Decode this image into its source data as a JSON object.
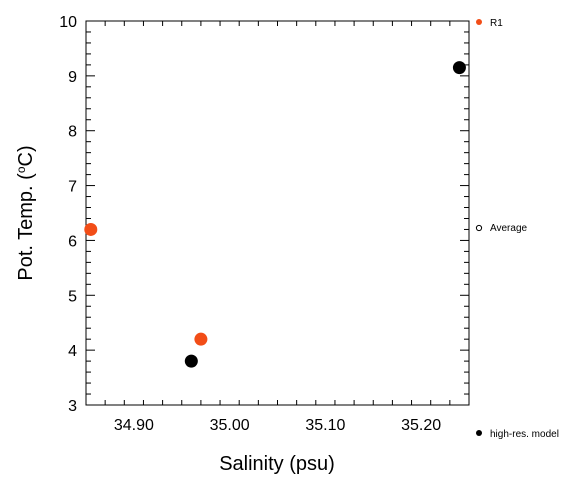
{
  "chart_data": {
    "type": "scatter",
    "xlabel": "Salinity (psu)",
    "ylabel_main": "Pot. Temp. (",
    "ylabel_sup": "o",
    "ylabel_end": "C)",
    "xlim": [
      34.85,
      35.25
    ],
    "ylim": [
      3,
      10
    ],
    "x_ticks": [
      {
        "value": 34.9,
        "label": "34.90"
      },
      {
        "value": 35.0,
        "label": "35.00"
      },
      {
        "value": 35.1,
        "label": "35.10"
      },
      {
        "value": 35.2,
        "label": "35.20"
      }
    ],
    "y_ticks": [
      {
        "value": 3,
        "label": "3"
      },
      {
        "value": 4,
        "label": "4"
      },
      {
        "value": 5,
        "label": "5"
      },
      {
        "value": 6,
        "label": "6"
      },
      {
        "value": 7,
        "label": "7"
      },
      {
        "value": 8,
        "label": "8"
      },
      {
        "value": 9,
        "label": "9"
      },
      {
        "value": 10,
        "label": "10"
      }
    ],
    "series": [
      {
        "name": "R1",
        "color": "#f24d17",
        "points": [
          {
            "x": 34.855,
            "y": 6.2
          },
          {
            "x": 34.97,
            "y": 4.2
          }
        ]
      },
      {
        "name": "high-res. model",
        "color": "#000000",
        "points": [
          {
            "x": 34.96,
            "y": 3.8
          },
          {
            "x": 35.24,
            "y": 9.15
          }
        ]
      }
    ],
    "legend": [
      {
        "name": "R1",
        "color": "#f24d17",
        "marker": "filled"
      },
      {
        "name": "Average",
        "color": "#000000",
        "marker": "hollow"
      },
      {
        "name": "high-res. model",
        "color": "#000000",
        "marker": "filled"
      }
    ],
    "legend_placement": "right"
  }
}
